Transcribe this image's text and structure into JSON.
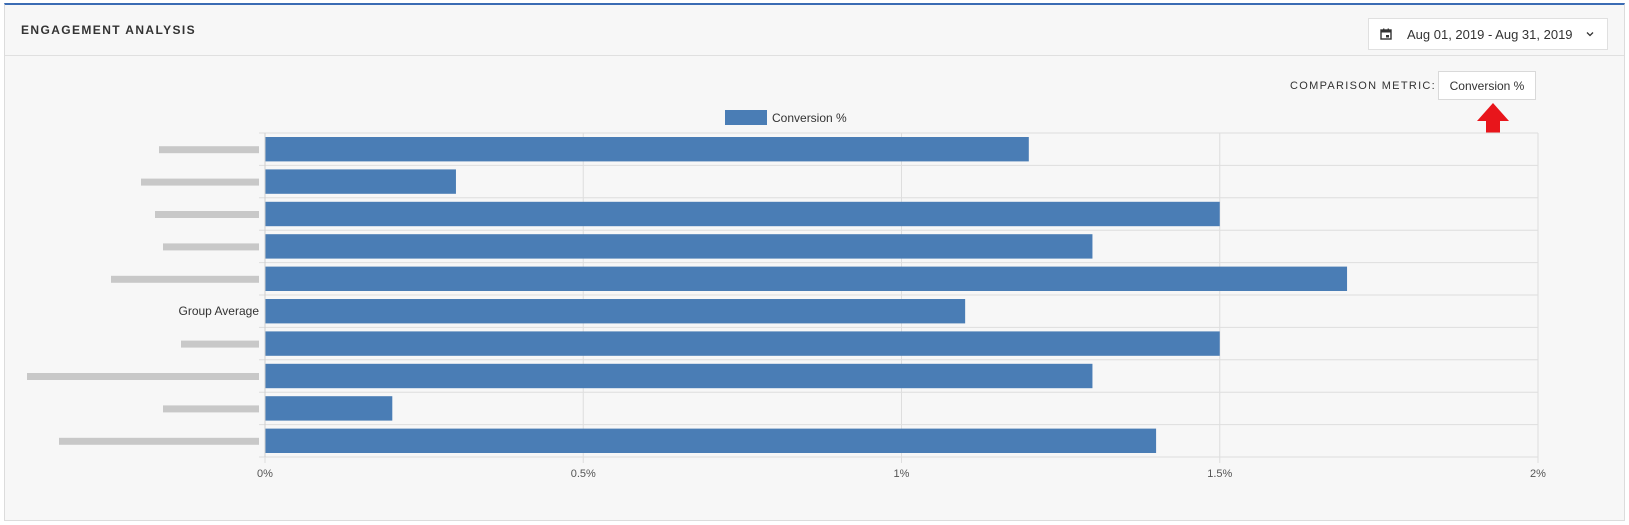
{
  "header": {
    "title": "ENGAGEMENT ANALYSIS",
    "date_range": "Aug 01, 2019 - Aug 31, 2019"
  },
  "controls": {
    "comparison_label": "COMPARISON METRIC:",
    "comparison_value": "Conversion %"
  },
  "icons": {
    "calendar": "calendar-icon",
    "dropdown": "chevron-down-icon",
    "annotation": "red-arrow-up-icon"
  },
  "colors": {
    "bar": "#4a7db5",
    "accent": "#3b6cb4",
    "annotation_arrow": "#e8151b"
  },
  "chart_data": {
    "type": "bar",
    "orientation": "horizontal",
    "legend": {
      "label": "Conversion %",
      "position": "top-center"
    },
    "categories": [
      "",
      "",
      "",
      "",
      "",
      "Group Average",
      "",
      "",
      "",
      ""
    ],
    "values": [
      1.2,
      0.3,
      1.5,
      1.3,
      1.7,
      1.1,
      1.5,
      1.3,
      0.2,
      1.4
    ],
    "xlim": [
      0,
      2
    ],
    "xticks": [
      0,
      0.5,
      1,
      1.5,
      2
    ],
    "xtick_labels": [
      "0%",
      "0.5%",
      "1%",
      "1.5%",
      "2%"
    ],
    "grid": true,
    "note": "category labels other than 'Group Average' are pixelated/redacted in the original"
  }
}
